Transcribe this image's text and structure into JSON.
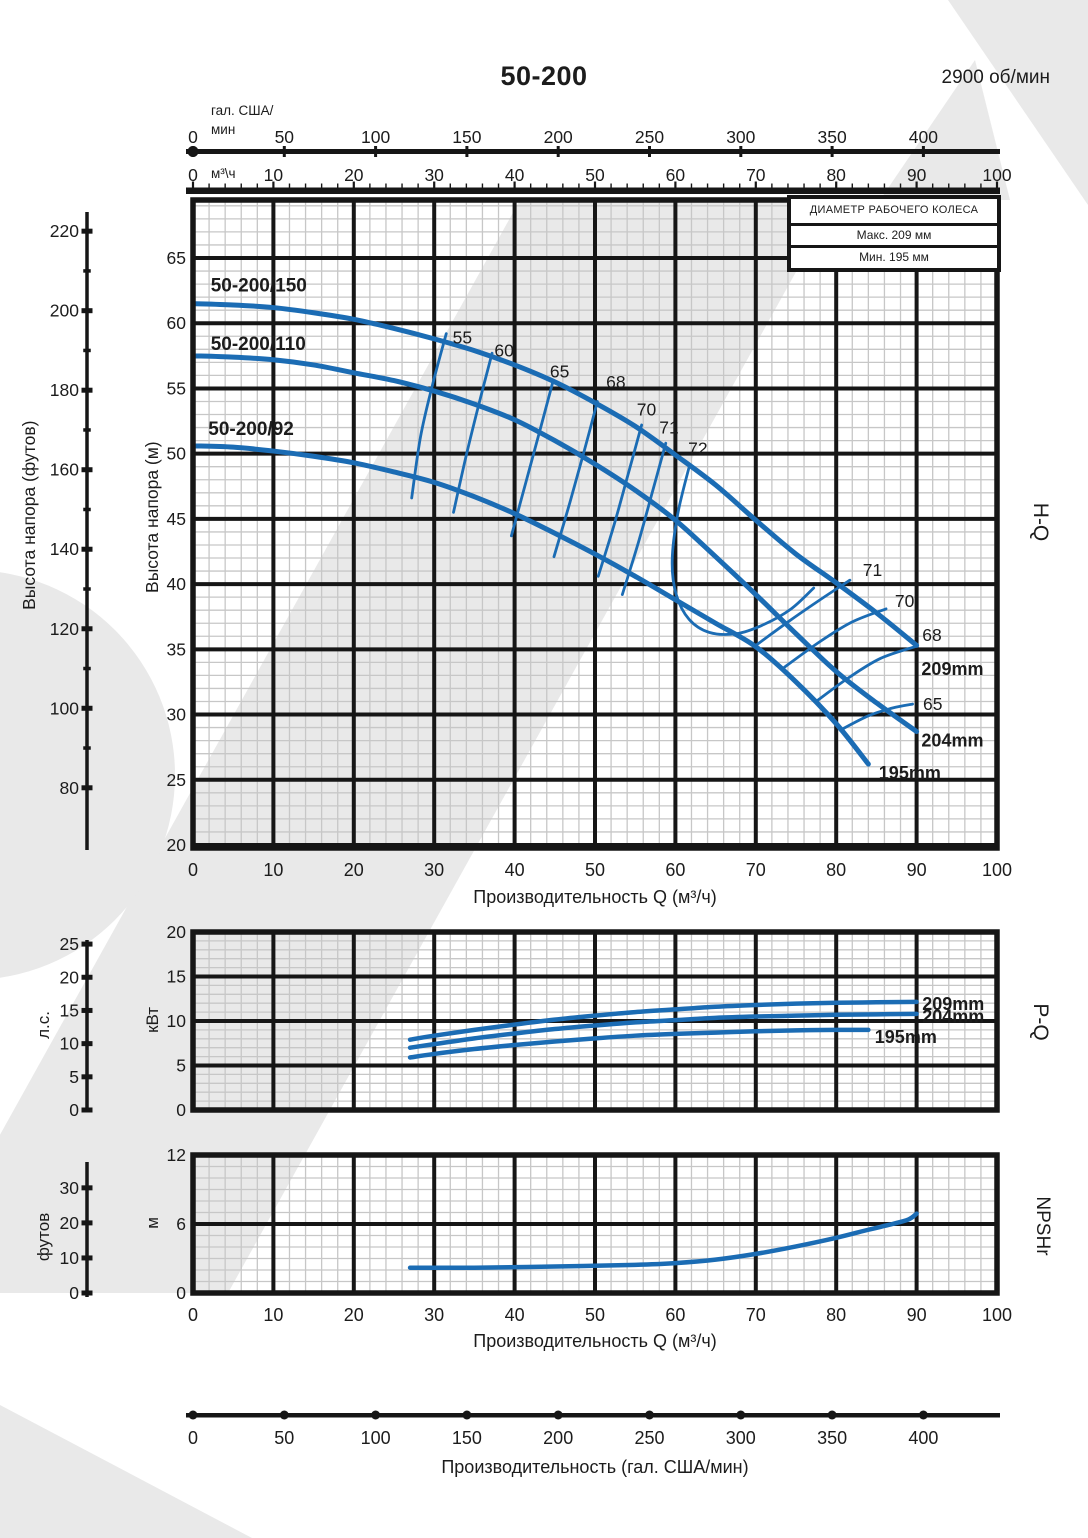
{
  "page": {
    "title": "50-200",
    "rpm": "2900 об/мин",
    "curve_blue": "#1b6cb4",
    "watermark_gray": "#e9e9e9"
  },
  "top_axis_gal": {
    "unit_line1": "гал. США/",
    "unit_line2": "мин",
    "ticks": [
      0,
      50,
      100,
      150,
      200,
      250,
      300,
      350,
      400
    ]
  },
  "top_axis_m3h": {
    "unit": "м³\\ч",
    "ticks": [
      0,
      10,
      20,
      30,
      40,
      50,
      60,
      70,
      80,
      90,
      100
    ]
  },
  "legend": {
    "title": "ДИАМЕТР РАБОЧЕГО КОЛЕСА",
    "row_max": "Макс. 209 мм",
    "row_min": "Мин. 195 мм"
  },
  "hq_axis": {
    "ylabel_ft": "Высота напора (футов)",
    "ylabel_m": "Высота напора (м)",
    "right_label": "H-Q",
    "xlabel": "Производительность Q (м³/ч)",
    "y_ticks_m": [
      65,
      60,
      55,
      50,
      45,
      40,
      35,
      30,
      25,
      20
    ],
    "y_ticks_ft": [
      220,
      200,
      180,
      160,
      140,
      120,
      100,
      80
    ],
    "x_ticks": [
      0,
      10,
      20,
      30,
      40,
      50,
      60,
      70,
      80,
      90,
      100
    ]
  },
  "pq_axis": {
    "ylabel_kw": "кВт",
    "ylabel_hp": "л.с.",
    "right_label": "P-Q",
    "y_ticks_kw": [
      20,
      15,
      10,
      5,
      0
    ],
    "y_ticks_hp": [
      25,
      20,
      15,
      10,
      5,
      0
    ]
  },
  "npsh_axis": {
    "ylabel_m": "м",
    "ylabel_ft": "футов",
    "right_label": "NPSHr",
    "xlabel": "Производительность Q (м³/ч)",
    "y_ticks_m": [
      12,
      6,
      0
    ],
    "y_ticks_ft": [
      30,
      20,
      10,
      0
    ],
    "x_ticks": [
      0,
      10,
      20,
      30,
      40,
      50,
      60,
      70,
      80,
      90,
      100
    ]
  },
  "bottom_axis": {
    "label": "Производительность (гал. США/мин)",
    "ticks": [
      0,
      50,
      100,
      150,
      200,
      250,
      300,
      350,
      400
    ]
  },
  "chart_data": [
    {
      "type": "line",
      "name": "H-Q",
      "xlabel": "Производительность Q (м³/ч)",
      "xlim": [
        0,
        100
      ],
      "ylim_m": [
        20,
        65
      ],
      "ylim_ft": [
        80,
        220
      ],
      "series": [
        {
          "name": "209mm",
          "model": "50-200/150",
          "points": [
            [
              0,
              61.5
            ],
            [
              5,
              61.4
            ],
            [
              10,
              61.2
            ],
            [
              15,
              60.8
            ],
            [
              20,
              60.3
            ],
            [
              25,
              59.6
            ],
            [
              30,
              58.8
            ],
            [
              35,
              57.9
            ],
            [
              40,
              56.8
            ],
            [
              45,
              55.5
            ],
            [
              50,
              53.9
            ],
            [
              55,
              52.1
            ],
            [
              60,
              49.9
            ],
            [
              65,
              47.6
            ],
            [
              70,
              44.9
            ],
            [
              75,
              42.3
            ],
            [
              80,
              40.1
            ],
            [
              85,
              37.8
            ],
            [
              90,
              35.3
            ]
          ]
        },
        {
          "name": "204mm",
          "model": "50-200/110",
          "points": [
            [
              0,
              57.5
            ],
            [
              5,
              57.4
            ],
            [
              10,
              57.2
            ],
            [
              15,
              56.8
            ],
            [
              20,
              56.2
            ],
            [
              25,
              55.6
            ],
            [
              30,
              54.8
            ],
            [
              35,
              53.8
            ],
            [
              40,
              52.6
            ],
            [
              45,
              51.0
            ],
            [
              50,
              49.2
            ],
            [
              55,
              47.2
            ],
            [
              60,
              44.9
            ],
            [
              65,
              42.1
            ],
            [
              70,
              39.2
            ],
            [
              75,
              36.2
            ],
            [
              80,
              33.3
            ],
            [
              85,
              30.9
            ],
            [
              90,
              28.7
            ]
          ]
        },
        {
          "name": "195mm",
          "model": "50-200/92",
          "points": [
            [
              0,
              50.6
            ],
            [
              5,
              50.5
            ],
            [
              10,
              50.2
            ],
            [
              15,
              49.8
            ],
            [
              20,
              49.3
            ],
            [
              25,
              48.6
            ],
            [
              30,
              47.8
            ],
            [
              35,
              46.7
            ],
            [
              40,
              45.4
            ],
            [
              45,
              43.9
            ],
            [
              50,
              42.3
            ],
            [
              55,
              40.6
            ],
            [
              60,
              38.8
            ],
            [
              65,
              37.0
            ],
            [
              70,
              35.2
            ],
            [
              75,
              32.5
            ],
            [
              80,
              29.3
            ],
            [
              84,
              26.2
            ]
          ]
        }
      ],
      "efficiency_lines": [
        {
          "value": 55,
          "points": [
            [
              31.5,
              59.2
            ],
            [
              29.8,
              55.3
            ],
            [
              28.3,
              51.3
            ],
            [
              27.2,
              46.6
            ]
          ]
        },
        {
          "value": 60,
          "points": [
            [
              37.2,
              57.7
            ],
            [
              35.6,
              53.9
            ],
            [
              34.0,
              49.9
            ],
            [
              32.4,
              45.5
            ]
          ]
        },
        {
          "value": 65,
          "points": [
            [
              44.8,
              55.6
            ],
            [
              43.2,
              51.9
            ],
            [
              41.4,
              47.8
            ],
            [
              39.6,
              43.7
            ]
          ]
        },
        {
          "value": 68,
          "points": [
            [
              50.3,
              54.0
            ],
            [
              48.7,
              50.3
            ],
            [
              46.9,
              46.3
            ],
            [
              44.9,
              42.1
            ]
          ]
        },
        {
          "value": 70,
          "points": [
            [
              55.8,
              52.2
            ],
            [
              54.2,
              48.6
            ],
            [
              52.4,
              44.6
            ],
            [
              50.4,
              40.6
            ]
          ]
        },
        {
          "value": 71,
          "points": [
            [
              58.8,
              50.8
            ],
            [
              57.2,
              47.2
            ],
            [
              55.4,
              43.2
            ],
            [
              53.4,
              39.2
            ]
          ]
        },
        {
          "value": 72,
          "points": [
            [
              61.8,
              49.2
            ],
            [
              60.3,
              45.4
            ],
            [
              59.6,
              41.8
            ],
            [
              60.1,
              39.2
            ],
            [
              61.7,
              37.3
            ],
            [
              64.2,
              36.3
            ],
            [
              67.6,
              36.2
            ],
            [
              71.0,
              36.9
            ],
            [
              74.4,
              38.1
            ],
            [
              77.2,
              39.7
            ]
          ]
        },
        {
          "value": 71,
          "points": [
            [
              70.0,
              35.3
            ],
            [
              74.0,
              37.1
            ],
            [
              78.0,
              38.8
            ],
            [
              81.7,
              40.3
            ]
          ]
        },
        {
          "value": 70,
          "points": [
            [
              73.5,
              33.6
            ],
            [
              78.0,
              35.6
            ],
            [
              82.0,
              37.1
            ],
            [
              86.2,
              38.1
            ]
          ]
        },
        {
          "value": 68,
          "points": [
            [
              77.5,
              31.0
            ],
            [
              81.5,
              32.8
            ],
            [
              85.5,
              34.3
            ],
            [
              89.8,
              35.2
            ]
          ]
        },
        {
          "value": 65,
          "points": [
            [
              80.5,
              28.8
            ],
            [
              84.0,
              29.9
            ],
            [
              87.0,
              30.5
            ],
            [
              89.5,
              30.8
            ]
          ]
        }
      ],
      "labels": [
        {
          "text": "50-200/150",
          "q": 2.2,
          "v": 62.9,
          "bold": true,
          "size": 19,
          "anchor": "start"
        },
        {
          "text": "50-200/110",
          "q": 2.2,
          "v": 58.4,
          "bold": true,
          "size": 19,
          "anchor": "start"
        },
        {
          "text": "50-200/92",
          "q": 1.9,
          "v": 51.9,
          "bold": true,
          "size": 19,
          "anchor": "start"
        },
        {
          "text": "55",
          "q": 33.5,
          "v": 58.9,
          "anchor": "middle"
        },
        {
          "text": "60",
          "q": 38.7,
          "v": 57.9,
          "anchor": "middle"
        },
        {
          "text": "65",
          "q": 45.6,
          "v": 56.3,
          "anchor": "middle"
        },
        {
          "text": "68",
          "q": 52.6,
          "v": 55.5,
          "anchor": "middle"
        },
        {
          "text": "70",
          "q": 56.4,
          "v": 53.4,
          "anchor": "middle"
        },
        {
          "text": "71",
          "q": 59.2,
          "v": 52.0,
          "anchor": "middle"
        },
        {
          "text": "72",
          "q": 62.8,
          "v": 50.4,
          "anchor": "middle"
        },
        {
          "text": "71",
          "q": 83.3,
          "v": 41.1,
          "anchor": "start"
        },
        {
          "text": "70",
          "q": 87.3,
          "v": 38.7,
          "anchor": "start"
        },
        {
          "text": "68",
          "q": 90.7,
          "v": 36.1,
          "anchor": "start"
        },
        {
          "text": "209mm",
          "q": 90.6,
          "v": 33.5,
          "bold": true,
          "size": 18,
          "anchor": "start"
        },
        {
          "text": "65",
          "q": 90.8,
          "v": 30.8,
          "anchor": "start"
        },
        {
          "text": "204mm",
          "q": 90.6,
          "v": 28.0,
          "bold": true,
          "size": 18,
          "anchor": "start"
        },
        {
          "text": "195mm",
          "q": 85.3,
          "v": 25.5,
          "bold": true,
          "size": 18,
          "anchor": "start"
        }
      ]
    },
    {
      "type": "line",
      "name": "P-Q",
      "xlim": [
        0,
        100
      ],
      "ylim_kw": [
        0,
        20
      ],
      "ylim_hp": [
        0,
        25
      ],
      "series": [
        {
          "name": "209mm",
          "points": [
            [
              27,
              7.9
            ],
            [
              30,
              8.35
            ],
            [
              35,
              9.0
            ],
            [
              40,
              9.6
            ],
            [
              45,
              10.15
            ],
            [
              50,
              10.6
            ],
            [
              55,
              11.0
            ],
            [
              60,
              11.3
            ],
            [
              65,
              11.6
            ],
            [
              70,
              11.8
            ],
            [
              75,
              11.95
            ],
            [
              80,
              12.05
            ],
            [
              85,
              12.1
            ],
            [
              90,
              12.15
            ]
          ]
        },
        {
          "name": "204mm",
          "points": [
            [
              27,
              7.0
            ],
            [
              30,
              7.4
            ],
            [
              35,
              8.05
            ],
            [
              40,
              8.6
            ],
            [
              45,
              9.1
            ],
            [
              50,
              9.5
            ],
            [
              55,
              9.85
            ],
            [
              60,
              10.1
            ],
            [
              65,
              10.35
            ],
            [
              70,
              10.5
            ],
            [
              75,
              10.6
            ],
            [
              80,
              10.7
            ],
            [
              85,
              10.75
            ],
            [
              90,
              10.8
            ]
          ]
        },
        {
          "name": "195mm",
          "points": [
            [
              27,
              5.9
            ],
            [
              30,
              6.3
            ],
            [
              35,
              6.85
            ],
            [
              40,
              7.3
            ],
            [
              45,
              7.7
            ],
            [
              50,
              8.05
            ],
            [
              55,
              8.35
            ],
            [
              60,
              8.55
            ],
            [
              65,
              8.7
            ],
            [
              70,
              8.85
            ],
            [
              75,
              8.95
            ],
            [
              80,
              9.0
            ],
            [
              84,
              9.0
            ]
          ]
        }
      ],
      "labels": [
        {
          "text": "209mm",
          "q": 90.7,
          "v": 11.9,
          "bold": true,
          "size": 18,
          "anchor": "start"
        },
        {
          "text": "204mm",
          "q": 90.7,
          "v": 10.5,
          "bold": true,
          "size": 18,
          "anchor": "start"
        },
        {
          "text": "195mm",
          "q": 84.8,
          "v": 8.2,
          "bold": true,
          "size": 18,
          "anchor": "start"
        }
      ]
    },
    {
      "type": "line",
      "name": "NPSHr",
      "xlim": [
        0,
        100
      ],
      "ylim_m": [
        0,
        12
      ],
      "ylim_ft": [
        0,
        30
      ],
      "series": [
        {
          "name": "NPSHr",
          "points": [
            [
              27,
              2.2
            ],
            [
              35,
              2.2
            ],
            [
              45,
              2.3
            ],
            [
              55,
              2.45
            ],
            [
              60,
              2.6
            ],
            [
              65,
              2.9
            ],
            [
              70,
              3.4
            ],
            [
              75,
              4.05
            ],
            [
              80,
              4.8
            ],
            [
              84,
              5.5
            ],
            [
              87,
              6.0
            ],
            [
              89,
              6.4
            ],
            [
              90,
              6.9
            ]
          ]
        }
      ],
      "labels": []
    }
  ]
}
